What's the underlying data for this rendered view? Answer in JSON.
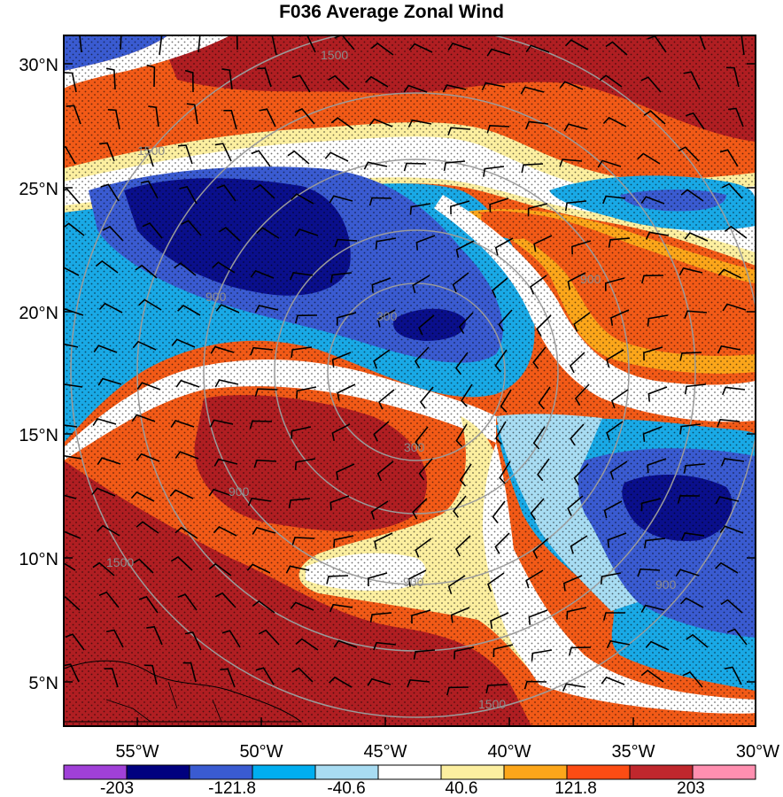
{
  "title": "F036 Average Zonal Wind",
  "map": {
    "lat_ticks": [
      "30°N",
      "25°N",
      "20°N",
      "15°N",
      "10°N",
      "5°N"
    ],
    "lon_ticks": [
      "55°W",
      "50°W",
      "45°W",
      "40°W",
      "35°W",
      "30°W"
    ],
    "contour_labels": [
      "1500",
      "1500",
      "1500",
      "1500",
      "900",
      "900",
      "900",
      "900",
      "900",
      "300",
      "300"
    ],
    "stippling": true,
    "wind_barbs": true
  },
  "colorbar": {
    "labels": [
      "-203",
      "-121.8",
      "-40.6",
      "40.6",
      "121.8",
      "203"
    ],
    "colors": [
      "#a040d8",
      "#00007f",
      "#3a5bd1",
      "#00aef0",
      "#a8dcf2",
      "#ffffff",
      "#fcefa0",
      "#fca61a",
      "#fc4c14",
      "#c0272d",
      "#ff8fb0"
    ]
  },
  "colors": {
    "dark_red": "#b01e22",
    "red_orange": "#f25a17",
    "orange": "#fca61a",
    "light_yellow": "#fcefa0",
    "white": "#ffffff",
    "light_blue": "#a8dcf2",
    "cyan_blue": "#19a9e6",
    "medium_blue": "#3a5bd1",
    "navy": "#0a0f8c"
  }
}
